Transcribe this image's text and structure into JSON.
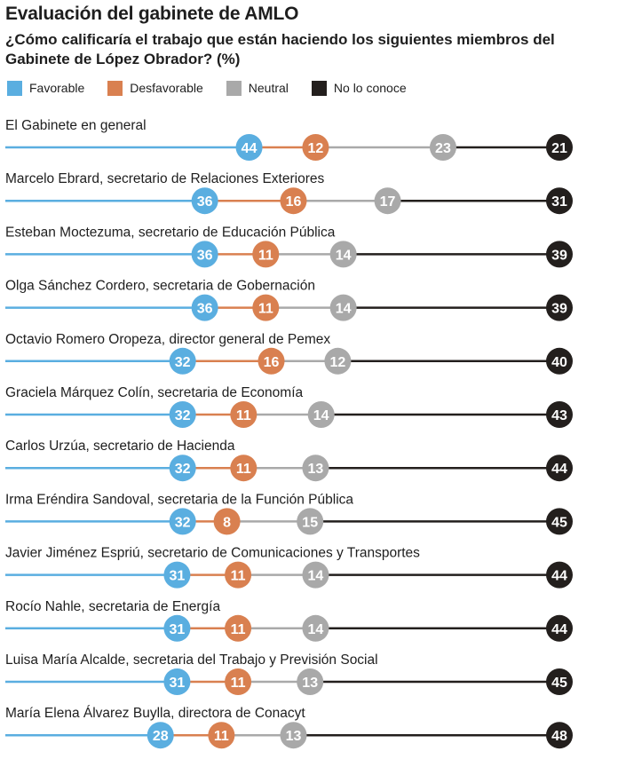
{
  "header": {
    "title": "Evaluación del gabinete de AMLO",
    "subtitle": "¿Cómo calificaría el trabajo que están haciendo los siguientes miembros del Gabinete de López Obrador? (%)"
  },
  "legend": [
    {
      "label": "Favorable",
      "color": "#5aaee0"
    },
    {
      "label": "Desfavorable",
      "color": "#d98050"
    },
    {
      "label": "Neutral",
      "color": "#a9a9a9"
    },
    {
      "label": "No lo conoce",
      "color": "#231f1d"
    }
  ],
  "chart_data": {
    "type": "stacked-bar",
    "title": "Evaluación del gabinete de AMLO",
    "categories": [
      "El Gabinete en general",
      "Marcelo Ebrard, secretario de Relaciones Exteriores",
      "Esteban Moctezuma, secretario de Educación Pública",
      "Olga Sánchez Cordero, secretaria de Gobernación",
      "Octavio Romero Oropeza, director general de Pemex",
      "Graciela Márquez Colín, secretaria de Economía",
      "Carlos Urzúa, secretario de Hacienda",
      "Irma Eréndira Sandoval, secretaria de la Función Pública",
      "Javier Jiménez Espriú, secretario de Comunicaciones y Transportes",
      "Rocío Nahle, secretaria de Energía",
      "Luisa María Alcalde, secretaria del Trabajo y Previsión Social",
      "María Elena Álvarez Buylla, directora de Conacyt"
    ],
    "series": [
      {
        "name": "Favorable",
        "color": "#5aaee0",
        "values": [
          44,
          36,
          36,
          36,
          32,
          32,
          32,
          32,
          31,
          31,
          31,
          28
        ]
      },
      {
        "name": "Desfavorable",
        "color": "#d98050",
        "values": [
          12,
          16,
          11,
          11,
          16,
          11,
          11,
          8,
          11,
          11,
          11,
          11
        ]
      },
      {
        "name": "Neutral",
        "color": "#a9a9a9",
        "values": [
          23,
          17,
          14,
          14,
          12,
          14,
          13,
          15,
          14,
          14,
          13,
          13
        ]
      },
      {
        "name": "No lo conoce",
        "color": "#231f1d",
        "values": [
          21,
          31,
          39,
          39,
          40,
          43,
          44,
          45,
          44,
          44,
          45,
          48
        ]
      }
    ],
    "unit": "%",
    "scale_max": 100
  }
}
